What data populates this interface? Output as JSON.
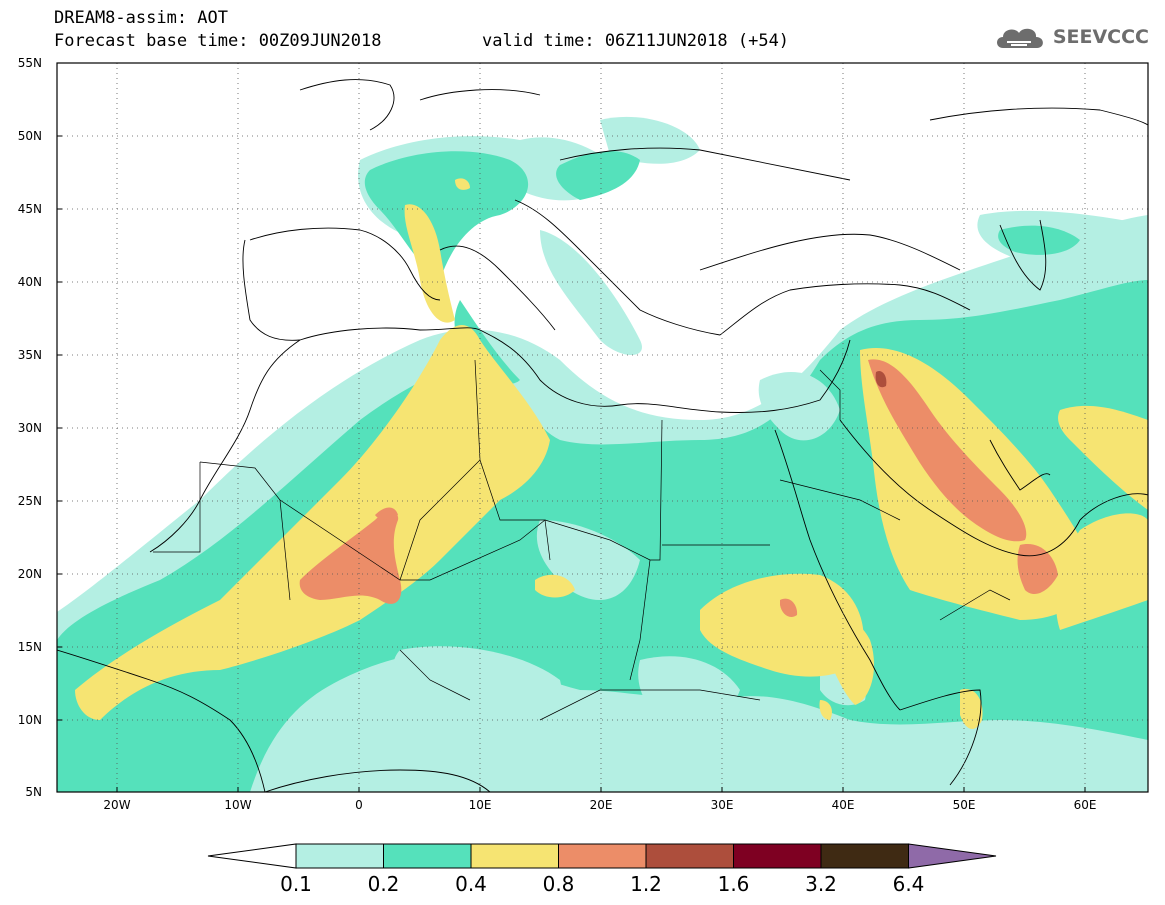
{
  "header": {
    "title": "DREAM8-assim: AOT",
    "base_time": "Forecast base time: 00Z09JUN2018",
    "valid_time": "valid time: 06Z11JUN2018 (+54)"
  },
  "logo": {
    "text": "SEEVCCC",
    "icon": "cloud-icon",
    "color": "#6d6d6d"
  },
  "map": {
    "lat_labels": [
      "55N",
      "50N",
      "45N",
      "40N",
      "35N",
      "30N",
      "25N",
      "20N",
      "15N",
      "10N",
      "5N"
    ],
    "lon_labels": [
      "20W",
      "10W",
      "0",
      "10E",
      "20E",
      "30E",
      "40E",
      "50E",
      "60E"
    ]
  },
  "colorbar": {
    "labels": [
      "0.1",
      "0.2",
      "0.4",
      "0.8",
      "1.2",
      "1.6",
      "3.2",
      "6.4"
    ],
    "colors": [
      "#ffffff",
      "#b4efe3",
      "#55e1bb",
      "#f6e472",
      "#ec8d68",
      "#ad4e3c",
      "#7e0022",
      "#3f2a13",
      "#8f6aa8"
    ]
  },
  "palette": {
    "low": "#b4efe3",
    "mid": "#55e1bb",
    "high": "#f6e472",
    "higher": "#ec8d68",
    "highest": "#ad4e3c"
  }
}
